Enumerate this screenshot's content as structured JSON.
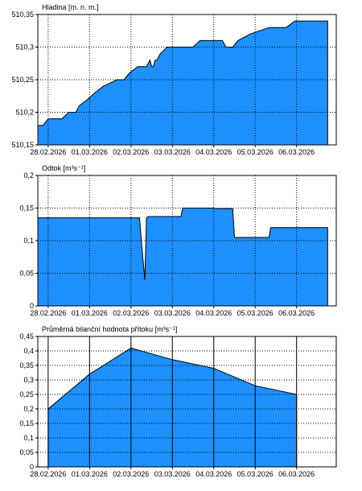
{
  "colors": {
    "fill": "#1e90ff",
    "grid": "#000000",
    "background": "#ffffff"
  },
  "chart_data": [
    {
      "type": "area",
      "title": "Hladina [m. n. m.]",
      "xlabel": "",
      "ylabel": "",
      "x_ticks": [
        "28.02.2026",
        "01.03.2026",
        "02.03.2026",
        "03.03.2026",
        "04.03.2026",
        "05.03.2026",
        "06.03.2026"
      ],
      "xlim": [
        "2026-02-27T18:00",
        "2026-03-06T23:00"
      ],
      "ylim": [
        510.15,
        510.35
      ],
      "y_ticks": [
        {
          "v": 510.35,
          "label": "510,35"
        },
        {
          "v": 510.3,
          "label": "510,3"
        },
        {
          "v": 510.25,
          "label": "510,25"
        },
        {
          "v": 510.2,
          "label": "510,2"
        },
        {
          "v": 510.15,
          "label": "510,15"
        }
      ],
      "grid": {
        "x": "dotted",
        "y": "dotted"
      },
      "data_x": [
        "2026-02-27T18:00",
        "2026-02-27T21:00",
        "2026-02-28T00:00",
        "2026-02-28T08:00",
        "2026-02-28T12:00",
        "2026-02-28T16:00",
        "2026-02-28T18:00",
        "2026-02-28T23:00",
        "2026-03-01T03:00",
        "2026-03-01T08:00",
        "2026-03-01T16:00",
        "2026-03-01T20:00",
        "2026-03-01T23:00",
        "2026-03-02T04:00",
        "2026-03-02T09:00",
        "2026-03-02T11:00",
        "2026-03-02T12:00",
        "2026-03-02T13:00",
        "2026-03-02T14:00",
        "2026-03-02T15:00",
        "2026-03-02T17:00",
        "2026-03-02T21:00",
        "2026-03-03T02:00",
        "2026-03-03T12:00",
        "2026-03-03T16:00",
        "2026-03-03T23:00",
        "2026-03-04T05:00",
        "2026-03-04T07:00",
        "2026-03-04T11:00",
        "2026-03-04T14:00",
        "2026-03-04T21:00",
        "2026-03-05T08:00",
        "2026-03-05T18:00",
        "2026-03-05T23:00",
        "2026-03-06T09:00",
        "2026-03-06T18:00"
      ],
      "data_y": [
        510.18,
        510.18,
        510.19,
        510.19,
        510.2,
        510.2,
        510.21,
        510.22,
        510.23,
        510.24,
        510.25,
        510.25,
        510.26,
        510.27,
        510.27,
        510.28,
        510.27,
        510.27,
        510.28,
        510.28,
        510.29,
        510.3,
        510.3,
        510.3,
        510.31,
        510.31,
        510.31,
        510.3,
        510.3,
        510.31,
        510.32,
        510.33,
        510.33,
        510.34,
        510.34,
        510.34
      ]
    },
    {
      "type": "area",
      "title": "Odtok [m³s⁻¹]",
      "xlabel": "",
      "ylabel": "",
      "x_ticks": [
        "28.02.2026",
        "01.03.2026",
        "02.03.2026",
        "03.03.2026",
        "04.03.2026",
        "05.03.2026",
        "06.03.2026"
      ],
      "xlim": [
        "2026-02-27T18:00",
        "2026-03-06T23:00"
      ],
      "ylim": [
        0,
        0.2
      ],
      "y_ticks": [
        {
          "v": 0.2,
          "label": "0,2"
        },
        {
          "v": 0.15,
          "label": "0,15"
        },
        {
          "v": 0.1,
          "label": "0,1"
        },
        {
          "v": 0.05,
          "label": "0,05"
        },
        {
          "v": 0,
          "label": "0"
        }
      ],
      "grid": {
        "x": "dotted",
        "y": "dotted"
      },
      "data_x": [
        "2026-02-27T18:00",
        "2026-03-02T05:00",
        "2026-03-02T06:00",
        "2026-03-02T08:00",
        "2026-03-02T09:00",
        "2026-03-02T10:00",
        "2026-03-03T05:00",
        "2026-03-03T06:00",
        "2026-03-04T00:00",
        "2026-03-04T01:00",
        "2026-03-04T11:00",
        "2026-03-04T12:00",
        "2026-03-04T13:00",
        "2026-03-05T08:00",
        "2026-03-05T09:00",
        "2026-03-06T18:00"
      ],
      "data_y": [
        0.135,
        0.135,
        0.1,
        0.04,
        0.135,
        0.137,
        0.137,
        0.15,
        0.15,
        0.149,
        0.149,
        0.105,
        0.105,
        0.105,
        0.12,
        0.12
      ]
    },
    {
      "type": "area",
      "title": "Průměrná bilanční hodnota přítoku [m³s⁻¹]",
      "xlabel": "",
      "ylabel": "",
      "x_ticks": [
        "28.02.2026",
        "01.03.2026",
        "02.03.2026",
        "03.03.2026",
        "04.03.2026",
        "05.03.2026",
        "06.03.2026"
      ],
      "xlim": [
        "2026-02-27T18:00",
        "2026-03-06T23:00"
      ],
      "ylim": [
        0,
        0.45
      ],
      "y_ticks": [
        {
          "v": 0.45,
          "label": "0,45"
        },
        {
          "v": 0.4,
          "label": "0,4"
        },
        {
          "v": 0.35,
          "label": "0,35"
        },
        {
          "v": 0.3,
          "label": "0,3"
        },
        {
          "v": 0.25,
          "label": "0,25"
        },
        {
          "v": 0.2,
          "label": "0,2"
        },
        {
          "v": 0.15,
          "label": "0,15"
        },
        {
          "v": 0.1,
          "label": "0,1"
        },
        {
          "v": 0.05,
          "label": "0,05"
        },
        {
          "v": 0,
          "label": "0"
        }
      ],
      "grid": {
        "x": "solid",
        "y": "dotted"
      },
      "data_x": [
        "2026-02-28T00:00",
        "2026-03-01T00:00",
        "2026-03-02T00:00",
        "2026-03-03T00:00",
        "2026-03-04T00:00",
        "2026-03-05T00:00",
        "2026-03-06T00:00"
      ],
      "data_y": [
        0.2,
        0.32,
        0.41,
        0.37,
        0.34,
        0.28,
        0.25
      ]
    }
  ]
}
